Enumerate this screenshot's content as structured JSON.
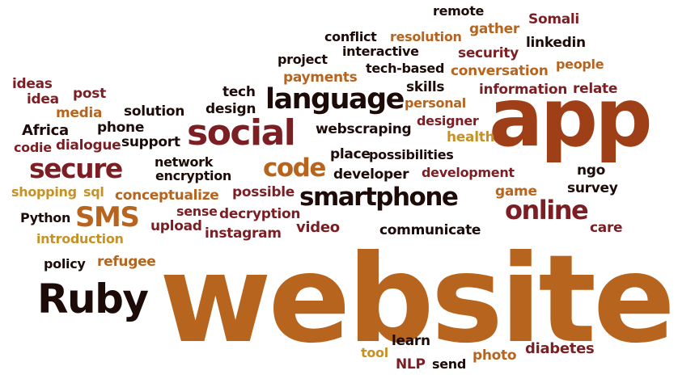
{
  "palette": {
    "dark_brown": "#1d0b08",
    "maroon": "#7b1f24",
    "rust": "#9e3f17",
    "orange": "#b7651e",
    "gold": "#c79224"
  },
  "words": [
    {
      "id": "website",
      "text": "website",
      "color": "#b7651e"
    },
    {
      "id": "app",
      "text": "app",
      "color": "#9e3f17"
    },
    {
      "id": "social",
      "text": "social",
      "color": "#7b1f24"
    },
    {
      "id": "language",
      "text": "language",
      "color": "#1d0b08"
    },
    {
      "id": "smartphone",
      "text": "smartphone",
      "color": "#1d0b08"
    },
    {
      "id": "ruby",
      "text": "Ruby",
      "color": "#1d0b08"
    },
    {
      "id": "online",
      "text": "online",
      "color": "#7b1f24"
    },
    {
      "id": "secure",
      "text": "secure",
      "color": "#7b1f24"
    },
    {
      "id": "code",
      "text": "code",
      "color": "#b7651e"
    },
    {
      "id": "sms",
      "text": "SMS",
      "color": "#b7651e"
    },
    {
      "id": "remote",
      "text": "remote",
      "color": "#1d0b08"
    },
    {
      "id": "somali",
      "text": "Somali",
      "color": "#7b1f24"
    },
    {
      "id": "conflict",
      "text": "conflict",
      "color": "#1d0b08"
    },
    {
      "id": "resolution",
      "text": "resolution",
      "color": "#b7651e"
    },
    {
      "id": "gather",
      "text": "gather",
      "color": "#b7651e"
    },
    {
      "id": "linkedin",
      "text": "linkedin",
      "color": "#1d0b08"
    },
    {
      "id": "interactive",
      "text": "interactive",
      "color": "#1d0b08"
    },
    {
      "id": "security",
      "text": "security",
      "color": "#7b1f24"
    },
    {
      "id": "project",
      "text": "project",
      "color": "#1d0b08"
    },
    {
      "id": "tech-based",
      "text": "tech-based",
      "color": "#1d0b08"
    },
    {
      "id": "people",
      "text": "people",
      "color": "#b7651e"
    },
    {
      "id": "conversation",
      "text": "conversation",
      "color": "#b7651e"
    },
    {
      "id": "payments",
      "text": "payments",
      "color": "#b7651e"
    },
    {
      "id": "ideas",
      "text": "ideas",
      "color": "#7b1f24"
    },
    {
      "id": "idea",
      "text": "idea",
      "color": "#7b1f24"
    },
    {
      "id": "post",
      "text": "post",
      "color": "#7b1f24"
    },
    {
      "id": "tech",
      "text": "tech",
      "color": "#1d0b08"
    },
    {
      "id": "skills",
      "text": "skills",
      "color": "#1d0b08"
    },
    {
      "id": "information",
      "text": "information",
      "color": "#7b1f24"
    },
    {
      "id": "relate",
      "text": "relate",
      "color": "#7b1f24"
    },
    {
      "id": "media",
      "text": "media",
      "color": "#b7651e"
    },
    {
      "id": "design",
      "text": "design",
      "color": "#1d0b08"
    },
    {
      "id": "personal",
      "text": "personal",
      "color": "#b7651e"
    },
    {
      "id": "solution",
      "text": "solution",
      "color": "#1d0b08"
    },
    {
      "id": "designer",
      "text": "designer",
      "color": "#7b1f24"
    },
    {
      "id": "phone",
      "text": "phone",
      "color": "#1d0b08"
    },
    {
      "id": "webscraping",
      "text": "webscraping",
      "color": "#1d0b08"
    },
    {
      "id": "africa",
      "text": "Africa",
      "color": "#1d0b08"
    },
    {
      "id": "health",
      "text": "health",
      "color": "#c79224"
    },
    {
      "id": "support",
      "text": "support",
      "color": "#1d0b08"
    },
    {
      "id": "codie",
      "text": "codie",
      "color": "#7b1f24"
    },
    {
      "id": "dialogue",
      "text": "dialogue",
      "color": "#7b1f24"
    },
    {
      "id": "place",
      "text": "place",
      "color": "#1d0b08"
    },
    {
      "id": "possibilities",
      "text": "possibilities",
      "color": "#1d0b08"
    },
    {
      "id": "network",
      "text": "network",
      "color": "#1d0b08"
    },
    {
      "id": "encryption",
      "text": "encryption",
      "color": "#1d0b08"
    },
    {
      "id": "developer",
      "text": "developer",
      "color": "#1d0b08"
    },
    {
      "id": "development",
      "text": "development",
      "color": "#7b1f24"
    },
    {
      "id": "ngo",
      "text": "ngo",
      "color": "#1d0b08"
    },
    {
      "id": "shopping",
      "text": "shopping",
      "color": "#c79224"
    },
    {
      "id": "sql",
      "text": "sql",
      "color": "#c79224"
    },
    {
      "id": "conceptualize",
      "text": "conceptualize",
      "color": "#b7651e"
    },
    {
      "id": "possible",
      "text": "possible",
      "color": "#7b1f24"
    },
    {
      "id": "game",
      "text": "game",
      "color": "#b7651e"
    },
    {
      "id": "survey",
      "text": "survey",
      "color": "#1d0b08"
    },
    {
      "id": "sense",
      "text": "sense",
      "color": "#7b1f24"
    },
    {
      "id": "decryption",
      "text": "decryption",
      "color": "#7b1f24"
    },
    {
      "id": "python",
      "text": "Python",
      "color": "#1d0b08"
    },
    {
      "id": "upload",
      "text": "upload",
      "color": "#7b1f24"
    },
    {
      "id": "instagram",
      "text": "instagram",
      "color": "#7b1f24"
    },
    {
      "id": "video",
      "text": "video",
      "color": "#7b1f24"
    },
    {
      "id": "communicate",
      "text": "communicate",
      "color": "#1d0b08"
    },
    {
      "id": "care",
      "text": "care",
      "color": "#7b1f24"
    },
    {
      "id": "introduction",
      "text": "introduction",
      "color": "#c79224"
    },
    {
      "id": "policy",
      "text": "policy",
      "color": "#1d0b08"
    },
    {
      "id": "refugee",
      "text": "refugee",
      "color": "#b7651e"
    },
    {
      "id": "learn",
      "text": "learn",
      "color": "#1d0b08"
    },
    {
      "id": "tool",
      "text": "tool",
      "color": "#c79224"
    },
    {
      "id": "nlp",
      "text": "NLP",
      "color": "#7b1f24"
    },
    {
      "id": "send",
      "text": "send",
      "color": "#1d0b08"
    },
    {
      "id": "photo",
      "text": "photo",
      "color": "#b7651e"
    },
    {
      "id": "diabetes",
      "text": "diabetes",
      "color": "#7b1f24"
    }
  ]
}
